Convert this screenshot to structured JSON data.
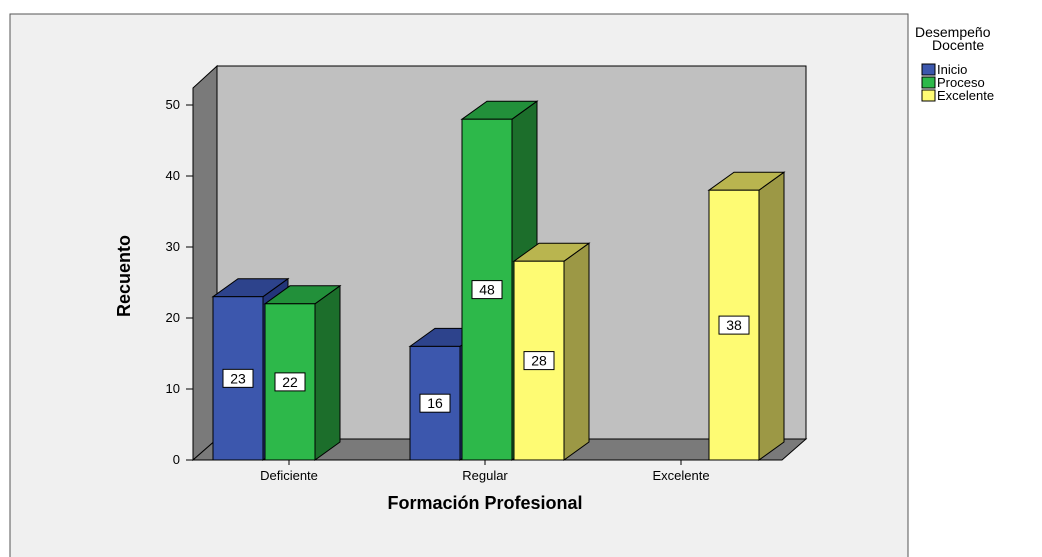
{
  "chart_data": {
    "type": "bar",
    "title": "",
    "xlabel": "Formación Profesional",
    "ylabel": "Recuento",
    "categories": [
      "Deficiente",
      "Regular",
      "Excelente"
    ],
    "ylim": [
      0,
      50
    ],
    "yticks": [
      0,
      10,
      20,
      30,
      40,
      50
    ],
    "grid": false,
    "legend_title": [
      "Desempeño",
      "Docente"
    ],
    "legend_position": "top-right",
    "series": [
      {
        "name": "Inicio",
        "values": [
          23,
          16,
          null
        ],
        "color": "#3c57ad",
        "side_color": "#23357a",
        "top_color": "#2d438c"
      },
      {
        "name": "Proceso",
        "values": [
          22,
          48,
          null
        ],
        "color": "#2db84a",
        "side_color": "#1c6e2b",
        "top_color": "#22903a"
      },
      {
        "name": "Excelente",
        "values": [
          null,
          28,
          38
        ],
        "color": "#fefb73",
        "side_color": "#9c9845",
        "top_color": "#b9b54f"
      }
    ],
    "data_labels": [
      {
        "series": 0,
        "category": 0,
        "text": "23"
      },
      {
        "series": 1,
        "category": 0,
        "text": "22"
      },
      {
        "series": 0,
        "category": 1,
        "text": "16"
      },
      {
        "series": 1,
        "category": 1,
        "text": "48"
      },
      {
        "series": 2,
        "category": 1,
        "text": "28"
      },
      {
        "series": 2,
        "category": 2,
        "text": "38"
      }
    ]
  },
  "colors": {
    "frame_bg": "#f0f0f0",
    "wall": "#c0c0c0",
    "left_wall": "#7a7a7a",
    "floor": "#7a7a7a"
  }
}
